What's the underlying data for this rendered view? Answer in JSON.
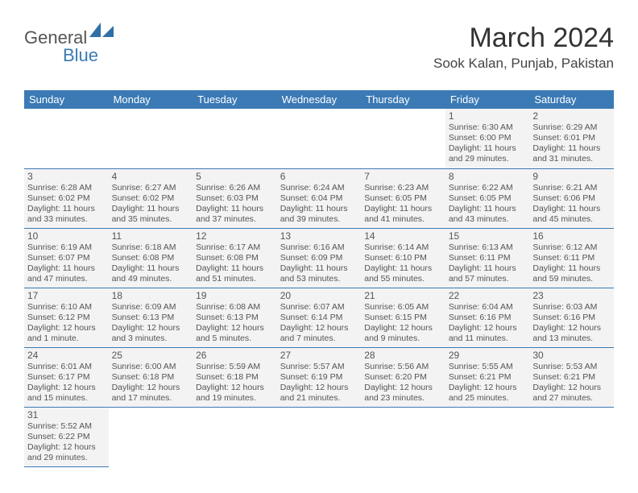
{
  "logo": {
    "part1": "General",
    "part2": "Blue"
  },
  "title": "March 2024",
  "location": "Sook Kalan, Punjab, Pakistan",
  "colors": {
    "header_bg": "#3b7ab5",
    "header_text": "#ffffff",
    "cell_bg": "#f3f3f3",
    "border": "#3b7ab5",
    "text": "#555555",
    "title_color": "#333333",
    "logo_blue": "#3b7ab5"
  },
  "typography": {
    "title_size_pt": 26,
    "location_size_pt": 13,
    "weekday_size_pt": 10,
    "daynum_size_pt": 9,
    "info_size_pt": 8
  },
  "weekdays": [
    "Sunday",
    "Monday",
    "Tuesday",
    "Wednesday",
    "Thursday",
    "Friday",
    "Saturday"
  ],
  "weeks": [
    [
      null,
      null,
      null,
      null,
      null,
      {
        "n": "1",
        "sr": "Sunrise: 6:30 AM",
        "ss": "Sunset: 6:00 PM",
        "dl": "Daylight: 11 hours and 29 minutes."
      },
      {
        "n": "2",
        "sr": "Sunrise: 6:29 AM",
        "ss": "Sunset: 6:01 PM",
        "dl": "Daylight: 11 hours and 31 minutes."
      }
    ],
    [
      {
        "n": "3",
        "sr": "Sunrise: 6:28 AM",
        "ss": "Sunset: 6:02 PM",
        "dl": "Daylight: 11 hours and 33 minutes."
      },
      {
        "n": "4",
        "sr": "Sunrise: 6:27 AM",
        "ss": "Sunset: 6:02 PM",
        "dl": "Daylight: 11 hours and 35 minutes."
      },
      {
        "n": "5",
        "sr": "Sunrise: 6:26 AM",
        "ss": "Sunset: 6:03 PM",
        "dl": "Daylight: 11 hours and 37 minutes."
      },
      {
        "n": "6",
        "sr": "Sunrise: 6:24 AM",
        "ss": "Sunset: 6:04 PM",
        "dl": "Daylight: 11 hours and 39 minutes."
      },
      {
        "n": "7",
        "sr": "Sunrise: 6:23 AM",
        "ss": "Sunset: 6:05 PM",
        "dl": "Daylight: 11 hours and 41 minutes."
      },
      {
        "n": "8",
        "sr": "Sunrise: 6:22 AM",
        "ss": "Sunset: 6:05 PM",
        "dl": "Daylight: 11 hours and 43 minutes."
      },
      {
        "n": "9",
        "sr": "Sunrise: 6:21 AM",
        "ss": "Sunset: 6:06 PM",
        "dl": "Daylight: 11 hours and 45 minutes."
      }
    ],
    [
      {
        "n": "10",
        "sr": "Sunrise: 6:19 AM",
        "ss": "Sunset: 6:07 PM",
        "dl": "Daylight: 11 hours and 47 minutes."
      },
      {
        "n": "11",
        "sr": "Sunrise: 6:18 AM",
        "ss": "Sunset: 6:08 PM",
        "dl": "Daylight: 11 hours and 49 minutes."
      },
      {
        "n": "12",
        "sr": "Sunrise: 6:17 AM",
        "ss": "Sunset: 6:08 PM",
        "dl": "Daylight: 11 hours and 51 minutes."
      },
      {
        "n": "13",
        "sr": "Sunrise: 6:16 AM",
        "ss": "Sunset: 6:09 PM",
        "dl": "Daylight: 11 hours and 53 minutes."
      },
      {
        "n": "14",
        "sr": "Sunrise: 6:14 AM",
        "ss": "Sunset: 6:10 PM",
        "dl": "Daylight: 11 hours and 55 minutes."
      },
      {
        "n": "15",
        "sr": "Sunrise: 6:13 AM",
        "ss": "Sunset: 6:11 PM",
        "dl": "Daylight: 11 hours and 57 minutes."
      },
      {
        "n": "16",
        "sr": "Sunrise: 6:12 AM",
        "ss": "Sunset: 6:11 PM",
        "dl": "Daylight: 11 hours and 59 minutes."
      }
    ],
    [
      {
        "n": "17",
        "sr": "Sunrise: 6:10 AM",
        "ss": "Sunset: 6:12 PM",
        "dl": "Daylight: 12 hours and 1 minute."
      },
      {
        "n": "18",
        "sr": "Sunrise: 6:09 AM",
        "ss": "Sunset: 6:13 PM",
        "dl": "Daylight: 12 hours and 3 minutes."
      },
      {
        "n": "19",
        "sr": "Sunrise: 6:08 AM",
        "ss": "Sunset: 6:13 PM",
        "dl": "Daylight: 12 hours and 5 minutes."
      },
      {
        "n": "20",
        "sr": "Sunrise: 6:07 AM",
        "ss": "Sunset: 6:14 PM",
        "dl": "Daylight: 12 hours and 7 minutes."
      },
      {
        "n": "21",
        "sr": "Sunrise: 6:05 AM",
        "ss": "Sunset: 6:15 PM",
        "dl": "Daylight: 12 hours and 9 minutes."
      },
      {
        "n": "22",
        "sr": "Sunrise: 6:04 AM",
        "ss": "Sunset: 6:16 PM",
        "dl": "Daylight: 12 hours and 11 minutes."
      },
      {
        "n": "23",
        "sr": "Sunrise: 6:03 AM",
        "ss": "Sunset: 6:16 PM",
        "dl": "Daylight: 12 hours and 13 minutes."
      }
    ],
    [
      {
        "n": "24",
        "sr": "Sunrise: 6:01 AM",
        "ss": "Sunset: 6:17 PM",
        "dl": "Daylight: 12 hours and 15 minutes."
      },
      {
        "n": "25",
        "sr": "Sunrise: 6:00 AM",
        "ss": "Sunset: 6:18 PM",
        "dl": "Daylight: 12 hours and 17 minutes."
      },
      {
        "n": "26",
        "sr": "Sunrise: 5:59 AM",
        "ss": "Sunset: 6:18 PM",
        "dl": "Daylight: 12 hours and 19 minutes."
      },
      {
        "n": "27",
        "sr": "Sunrise: 5:57 AM",
        "ss": "Sunset: 6:19 PM",
        "dl": "Daylight: 12 hours and 21 minutes."
      },
      {
        "n": "28",
        "sr": "Sunrise: 5:56 AM",
        "ss": "Sunset: 6:20 PM",
        "dl": "Daylight: 12 hours and 23 minutes."
      },
      {
        "n": "29",
        "sr": "Sunrise: 5:55 AM",
        "ss": "Sunset: 6:21 PM",
        "dl": "Daylight: 12 hours and 25 minutes."
      },
      {
        "n": "30",
        "sr": "Sunrise: 5:53 AM",
        "ss": "Sunset: 6:21 PM",
        "dl": "Daylight: 12 hours and 27 minutes."
      }
    ],
    [
      {
        "n": "31",
        "sr": "Sunrise: 5:52 AM",
        "ss": "Sunset: 6:22 PM",
        "dl": "Daylight: 12 hours and 29 minutes."
      },
      null,
      null,
      null,
      null,
      null,
      null
    ]
  ]
}
